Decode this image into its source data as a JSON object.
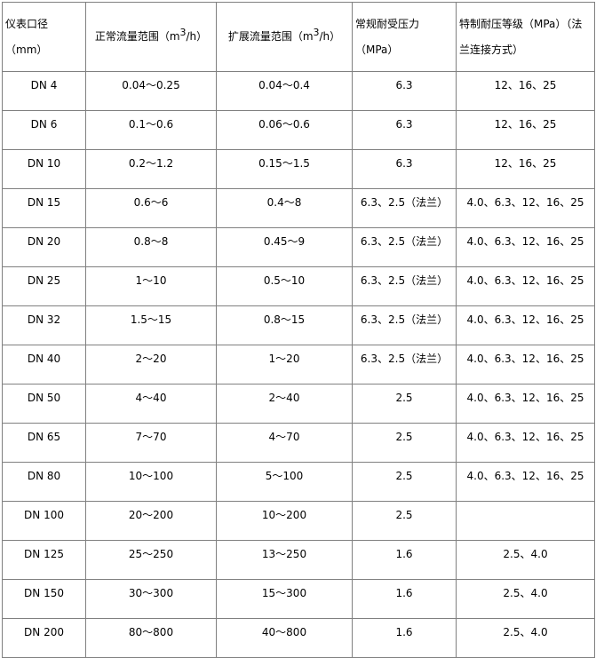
{
  "headers": {
    "size": "仪表口径（mm）",
    "normal_flow": "正常流量范围（m",
    "normal_flow_sup": "3",
    "normal_flow_tail": "/h）",
    "ext_flow": "扩展流量范围（m",
    "ext_flow_sup": "3",
    "ext_flow_tail": "/h）",
    "pressure": "常规耐受压力（MPa）",
    "special": "特制耐压等级（MPa）（法兰连接方式）"
  },
  "rows": [
    [
      "DN 4",
      "0.04～0.25",
      "0.04～0.4",
      "6.3",
      "12、16、25"
    ],
    [
      "DN 6",
      "0.1～0.6",
      "0.06～0.6",
      "6.3",
      "12、16、25"
    ],
    [
      "DN 10",
      "0.2～1.2",
      "0.15～1.5",
      "6.3",
      "12、16、25"
    ],
    [
      "DN 15",
      "0.6～6",
      "0.4～8",
      "6.3、2.5（法兰）",
      "4.0、6.3、12、16、25"
    ],
    [
      "DN 20",
      "0.8～8",
      "0.45～9",
      "6.3、2.5（法兰）",
      "4.0、6.3、12、16、25"
    ],
    [
      "DN 25",
      "1～10",
      "0.5～10",
      "6.3、2.5（法兰）",
      "4.0、6.3、12、16、25"
    ],
    [
      "DN 32",
      "1.5～15",
      "0.8～15",
      "6.3、2.5（法兰）",
      "4.0、6.3、12、16、25"
    ],
    [
      "DN 40",
      "2～20",
      "1～20",
      "6.3、2.5（法兰）",
      "4.0、6.3、12、16、25"
    ],
    [
      "DN 50",
      "4～40",
      "2～40",
      "2.5",
      "4.0、6.3、12、16、25"
    ],
    [
      "DN 65",
      "7～70",
      "4～70",
      "2.5",
      "4.0、6.3、12、16、25"
    ],
    [
      "DN 80",
      "10～100",
      "5～100",
      "2.5",
      "4.0、6.3、12、16、25"
    ],
    [
      "DN 100",
      "20～200",
      "10～200",
      "2.5",
      ""
    ],
    [
      "DN 125",
      "25～250",
      "13～250",
      "1.6",
      "2.5、4.0"
    ],
    [
      "DN 150",
      "30～300",
      "15～300",
      "1.6",
      "2.5、4.0"
    ],
    [
      "DN 200",
      "80～800",
      "40～800",
      "1.6",
      "2.5、4.0"
    ]
  ]
}
